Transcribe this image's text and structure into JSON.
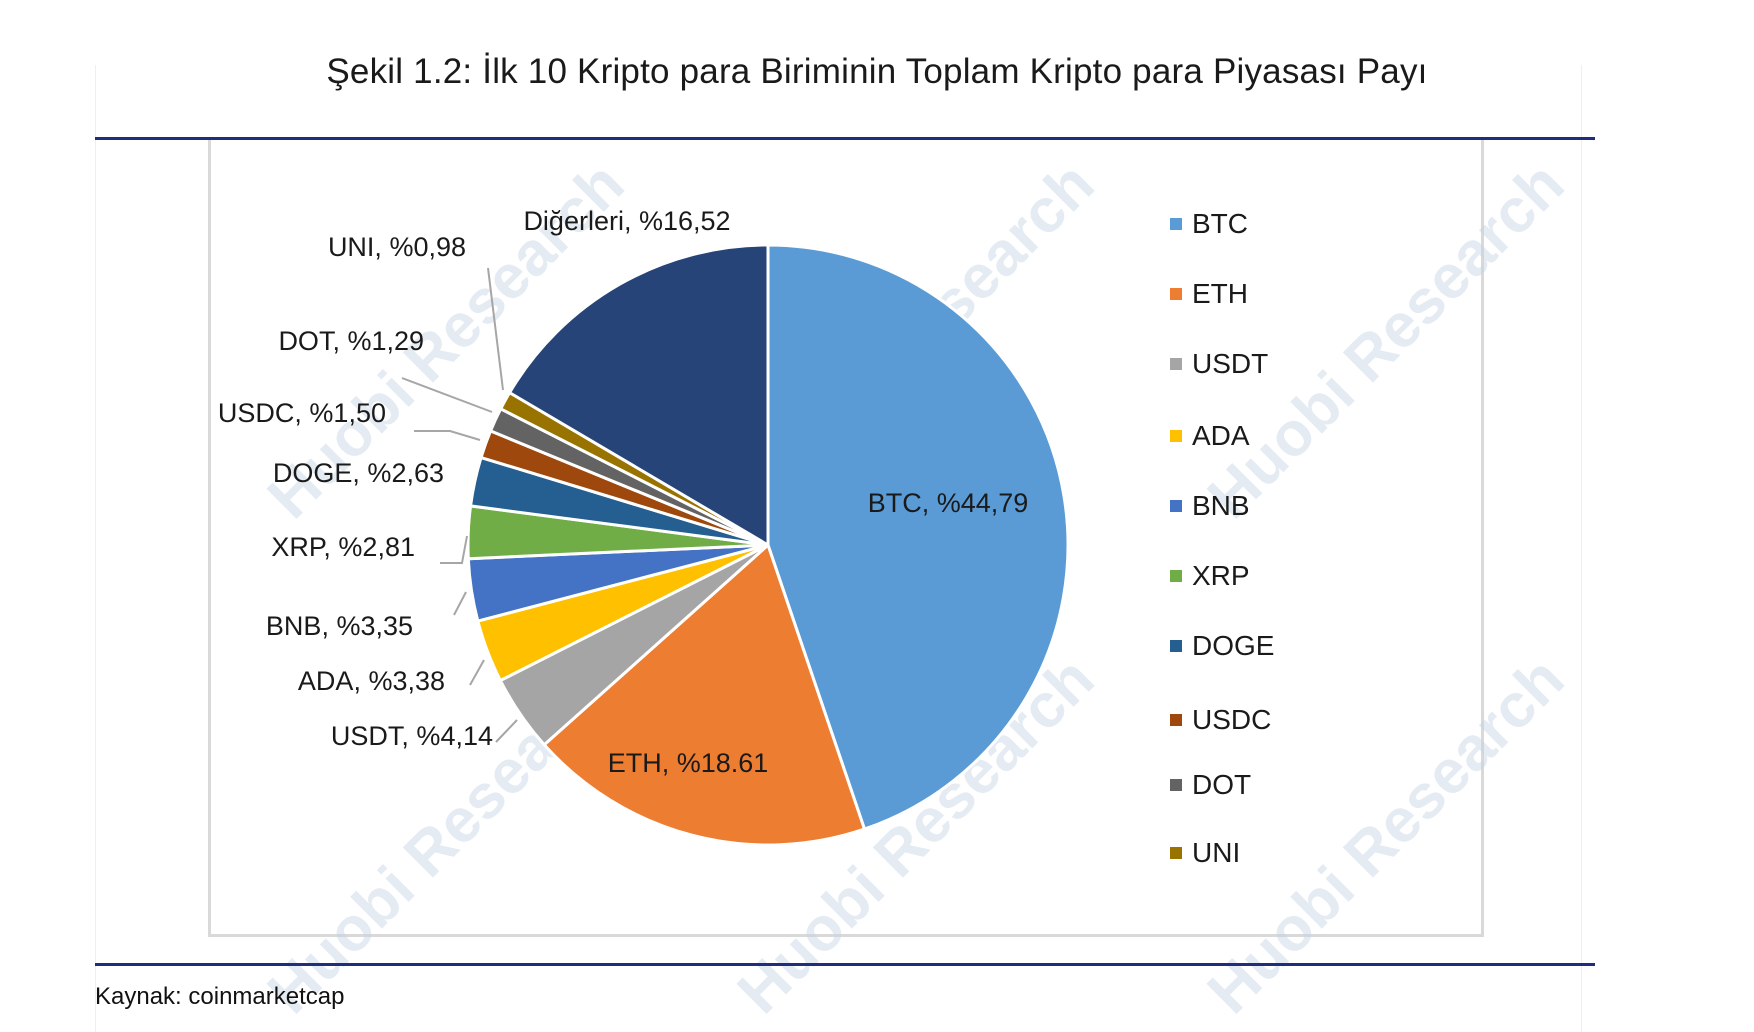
{
  "figure": {
    "title": "Şekil 1.2: İlk 10 Kripto para Biriminin Toplam Kripto para Piyasası Payı",
    "source": "Kaynak: coinmarketcap",
    "watermark": "Huobi Research"
  },
  "chart_data": {
    "type": "pie",
    "title": "",
    "slices": [
      {
        "name": "BTC",
        "value": 44.79,
        "label": "BTC, %44,79",
        "color": "#5b9bd5"
      },
      {
        "name": "ETH",
        "value": 18.61,
        "label": "ETH, %18.61",
        "color": "#ed7d31"
      },
      {
        "name": "USDT",
        "value": 4.14,
        "label": "USDT, %4,14",
        "color": "#a5a5a5"
      },
      {
        "name": "ADA",
        "value": 3.38,
        "label": "ADA, %3,38",
        "color": "#ffc000"
      },
      {
        "name": "BNB",
        "value": 3.35,
        "label": "BNB, %3,35",
        "color": "#4472c4"
      },
      {
        "name": "XRP",
        "value": 2.81,
        "label": "XRP, %2,81",
        "color": "#70ad47"
      },
      {
        "name": "DOGE",
        "value": 2.63,
        "label": "DOGE, %2,63",
        "color": "#255e91"
      },
      {
        "name": "USDC",
        "value": 1.5,
        "label": "USDC, %1,50",
        "color": "#9e480e"
      },
      {
        "name": "DOT",
        "value": 1.29,
        "label": "DOT, %1,29",
        "color": "#636363"
      },
      {
        "name": "UNI",
        "value": 0.98,
        "label": "UNI, %0,98",
        "color": "#997300"
      },
      {
        "name": "Diğerleri",
        "value": 16.52,
        "label": "Diğerleri, %16,52",
        "color": "#264478"
      }
    ],
    "legend": {
      "placement": "right",
      "entries": [
        "BTC",
        "ETH",
        "USDT",
        "ADA",
        "BNB",
        "XRP",
        "DOGE",
        "USDC",
        "DOT",
        "UNI"
      ]
    }
  }
}
